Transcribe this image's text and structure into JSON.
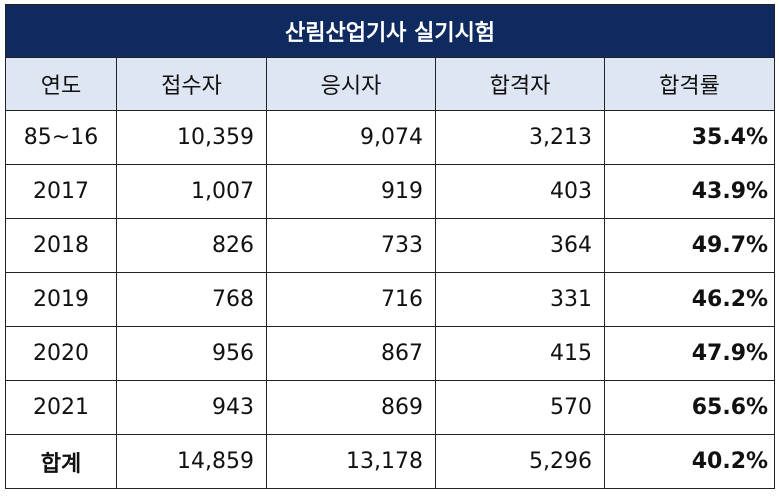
{
  "title": "산림산업기사 실기시험",
  "columns": [
    "연도",
    "접수자",
    "응시자",
    "합격자",
    "합격률"
  ],
  "rows": [
    {
      "year": "85~16",
      "applicants": "10,359",
      "examinees": "9,074",
      "passed": "3,213",
      "rate": "35.4%"
    },
    {
      "year": "2017",
      "applicants": "1,007",
      "examinees": "919",
      "passed": "403",
      "rate": "43.9%"
    },
    {
      "year": "2018",
      "applicants": "826",
      "examinees": "733",
      "passed": "364",
      "rate": "49.7%"
    },
    {
      "year": "2019",
      "applicants": "768",
      "examinees": "716",
      "passed": "331",
      "rate": "46.2%"
    },
    {
      "year": "2020",
      "applicants": "956",
      "examinees": "867",
      "passed": "415",
      "rate": "47.9%"
    },
    {
      "year": "2021",
      "applicants": "943",
      "examinees": "869",
      "passed": "570",
      "rate": "65.6%"
    }
  ],
  "total": {
    "year": "합계",
    "applicants": "14,859",
    "examinees": "13,178",
    "passed": "5,296",
    "rate": "40.2%"
  },
  "colors": {
    "title_bg": "#0e2a5f",
    "header_bg": "#dfe6f3"
  }
}
